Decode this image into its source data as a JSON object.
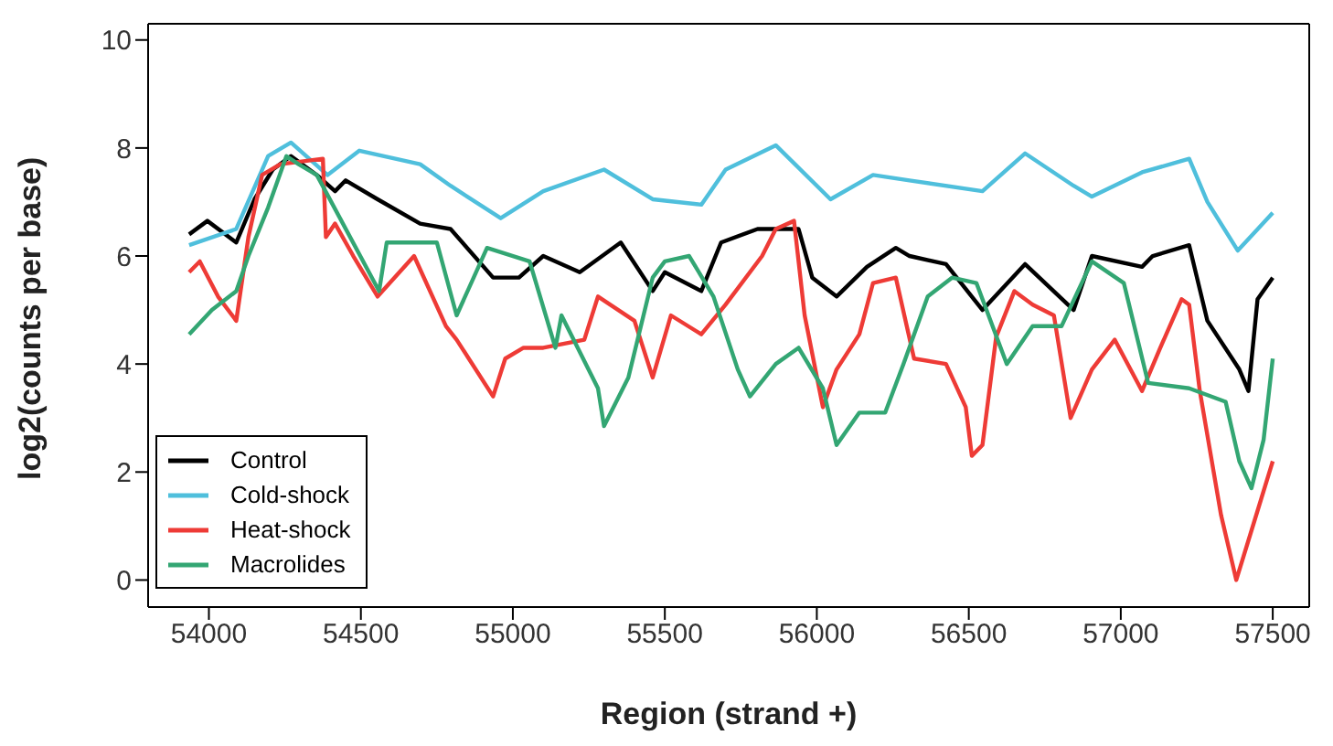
{
  "chart_data": {
    "type": "line",
    "xlabel": "Region (strand +)",
    "ylabel": "log2(counts per base)",
    "xlim": [
      53800,
      57620
    ],
    "ylim": [
      -0.5,
      10.3
    ],
    "xticks": [
      54000,
      54500,
      55000,
      55500,
      56000,
      56500,
      57000,
      57500
    ],
    "yticks": [
      0,
      2,
      4,
      6,
      8,
      10
    ],
    "grid": false,
    "legend": "bottom left",
    "marker": "none",
    "line_style": "solid",
    "series": [
      {
        "name": "Control",
        "color": "#000000",
        "x": [
          53935,
          53995,
          54090,
          54150,
          54210,
          54270,
          54355,
          54415,
          54450,
          54555,
          54695,
          54795,
          54935,
          55020,
          55100,
          55220,
          55355,
          55460,
          55500,
          55620,
          55685,
          55805,
          55940,
          55985,
          56065,
          56165,
          56260,
          56305,
          56425,
          56545,
          56685,
          56845,
          56905,
          57070,
          57105,
          57225,
          57285,
          57390,
          57420,
          57450,
          57500
        ],
        "values": [
          6.4,
          6.65,
          6.25,
          7.05,
          7.6,
          7.85,
          7.5,
          7.2,
          7.4,
          7.05,
          6.6,
          6.5,
          5.6,
          5.6,
          6.0,
          5.7,
          6.25,
          5.35,
          5.7,
          5.35,
          6.25,
          6.5,
          6.5,
          5.6,
          5.25,
          5.8,
          6.15,
          6.0,
          5.85,
          5.0,
          5.85,
          5.0,
          6.0,
          5.8,
          6.0,
          6.2,
          4.8,
          3.9,
          3.5,
          5.2,
          5.6
        ]
      },
      {
        "name": "Cold-shock",
        "color": "#4fbfdc",
        "x": [
          53935,
          54090,
          54195,
          54270,
          54390,
          54495,
          54695,
          54795,
          54960,
          55100,
          55300,
          55460,
          55620,
          55700,
          55865,
          56045,
          56185,
          56305,
          56545,
          56685,
          56845,
          56905,
          57070,
          57225,
          57285,
          57385,
          57500
        ],
        "values": [
          6.2,
          6.5,
          7.85,
          8.1,
          7.5,
          7.95,
          7.7,
          7.3,
          6.7,
          7.2,
          7.6,
          7.05,
          6.95,
          7.6,
          8.05,
          7.05,
          7.5,
          7.4,
          7.2,
          7.9,
          7.3,
          7.1,
          7.55,
          7.8,
          7.0,
          6.1,
          6.8
        ]
      },
      {
        "name": "Heat-shock",
        "color": "#ee3b36",
        "x": [
          53935,
          53970,
          54030,
          54090,
          54130,
          54175,
          54235,
          54375,
          54385,
          54415,
          54475,
          54555,
          54675,
          54780,
          54815,
          54935,
          54975,
          55035,
          55100,
          55235,
          55280,
          55400,
          55460,
          55520,
          55620,
          55700,
          55820,
          55865,
          55925,
          55960,
          56020,
          56065,
          56140,
          56185,
          56260,
          56320,
          56425,
          56490,
          56510,
          56545,
          56590,
          56650,
          56710,
          56780,
          56835,
          56905,
          56980,
          57070,
          57130,
          57200,
          57225,
          57260,
          57330,
          57380,
          57440,
          57500
        ],
        "values": [
          5.7,
          5.9,
          5.25,
          4.8,
          6.35,
          7.5,
          7.7,
          7.8,
          6.35,
          6.6,
          6.0,
          5.25,
          6.0,
          4.7,
          4.45,
          3.4,
          4.1,
          4.3,
          4.3,
          4.45,
          5.25,
          4.8,
          3.75,
          4.9,
          4.55,
          5.1,
          6.0,
          6.5,
          6.65,
          4.9,
          3.2,
          3.9,
          4.55,
          5.5,
          5.6,
          4.1,
          4.0,
          3.2,
          2.3,
          2.5,
          4.5,
          5.35,
          5.1,
          4.9,
          3.0,
          3.9,
          4.45,
          3.5,
          4.3,
          5.2,
          5.1,
          3.5,
          1.2,
          0.0,
          1.1,
          2.2
        ]
      },
      {
        "name": "Macrolides",
        "color": "#33a673",
        "x": [
          53935,
          54010,
          54090,
          54130,
          54195,
          54255,
          54295,
          54355,
          54560,
          54585,
          54750,
          54815,
          54915,
          55055,
          55140,
          55160,
          55280,
          55300,
          55380,
          55460,
          55500,
          55580,
          55660,
          55740,
          55780,
          55865,
          55940,
          56020,
          56065,
          56140,
          56225,
          56285,
          56365,
          56445,
          56525,
          56625,
          56710,
          56805,
          56905,
          57010,
          57090,
          57225,
          57345,
          57390,
          57430,
          57470,
          57500
        ],
        "values": [
          4.55,
          5.0,
          5.35,
          6.0,
          6.9,
          7.85,
          7.7,
          7.5,
          5.35,
          6.25,
          6.25,
          4.9,
          6.15,
          5.9,
          4.3,
          4.9,
          3.55,
          2.85,
          3.75,
          5.6,
          5.9,
          6.0,
          5.25,
          3.9,
          3.4,
          4.0,
          4.3,
          3.55,
          2.5,
          3.1,
          3.1,
          4.0,
          5.25,
          5.6,
          5.5,
          4.0,
          4.7,
          4.7,
          5.9,
          5.5,
          3.65,
          3.55,
          3.3,
          2.2,
          1.7,
          2.6,
          4.1
        ]
      }
    ]
  }
}
